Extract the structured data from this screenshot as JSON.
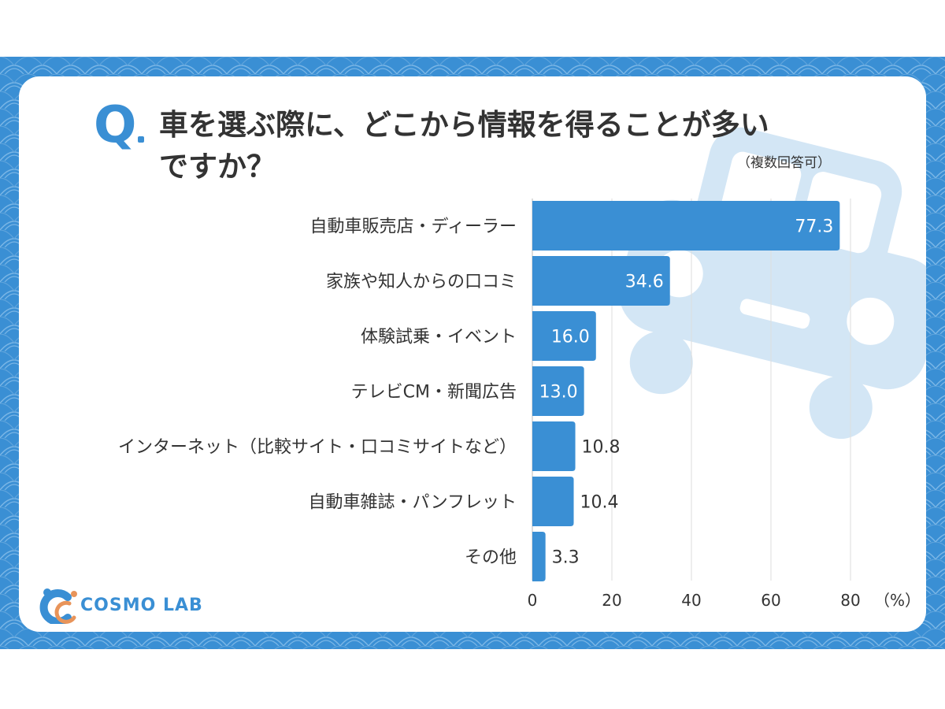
{
  "question": {
    "mark": "Q",
    "line1": "車を選ぶ際に、どこから情報を得ることが多い",
    "line2": "ですか？",
    "note": "（複数回答可）"
  },
  "logo": {
    "text": "COSMO LAB",
    "icon": "cosmo-lab-logo-icon"
  },
  "colors": {
    "accent": "#3a8fd4",
    "bar": "#3a8fd4",
    "text": "#333333",
    "car": "#d3e6f5"
  },
  "chart_data": {
    "type": "bar",
    "orientation": "horizontal",
    "categories": [
      "自動車販売店・ディーラー",
      "家族や知人からの口コミ",
      "体験試乗・イベント",
      "テレビCM・新聞広告",
      "インターネット（比較サイト・口コミサイトなど）",
      "自動車雑誌・パンフレット",
      "その他"
    ],
    "values": [
      77.3,
      34.6,
      16.0,
      13.0,
      10.8,
      10.4,
      3.3
    ],
    "value_labels": [
      "77.3",
      "34.6",
      "16.0",
      "13.0",
      "10.8",
      "10.4",
      "3.3"
    ],
    "x_ticks": [
      0,
      20,
      40,
      60,
      80
    ],
    "x_tick_labels": [
      "0",
      "20",
      "40",
      "60",
      "80"
    ],
    "xlim": [
      0,
      80
    ],
    "unit": "（%）",
    "grid": true
  }
}
